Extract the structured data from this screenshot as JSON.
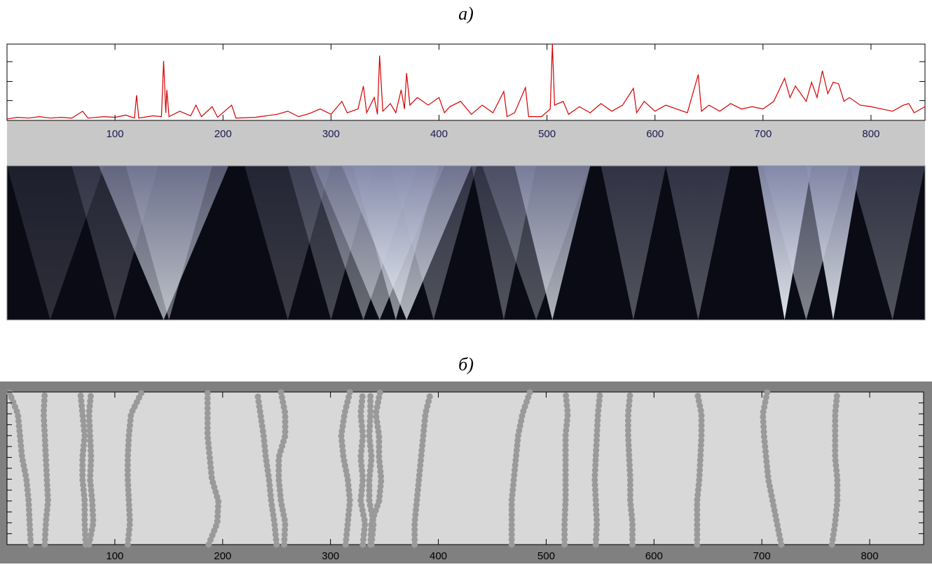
{
  "chart_data": [
    {
      "type": "line",
      "title": "а)",
      "color": "#d40000",
      "xlim": [
        0,
        850
      ],
      "ylim": [
        0,
        1
      ],
      "xticks": [
        100,
        200,
        300,
        400,
        500,
        600,
        700,
        800
      ],
      "yticks": [
        0.26,
        0.51,
        0.77
      ],
      "x": [
        0,
        10,
        20,
        30,
        40,
        50,
        60,
        70,
        75,
        90,
        100,
        110,
        118,
        120,
        122,
        135,
        143,
        145,
        147,
        148,
        150,
        160,
        170,
        175,
        180,
        190,
        195,
        208,
        212,
        230,
        250,
        260,
        270,
        280,
        290,
        300,
        310,
        315,
        325,
        330,
        333,
        340,
        343,
        345,
        348,
        355,
        360,
        365,
        368,
        370,
        373,
        380,
        390,
        400,
        405,
        410,
        420,
        430,
        440,
        450,
        460,
        463,
        470,
        480,
        483,
        495,
        503,
        505,
        507,
        515,
        520,
        530,
        540,
        550,
        560,
        570,
        580,
        583,
        590,
        600,
        610,
        620,
        630,
        640,
        643,
        650,
        660,
        670,
        680,
        690,
        700,
        710,
        720,
        725,
        730,
        740,
        745,
        750,
        755,
        760,
        765,
        770,
        775,
        780,
        790,
        800,
        810,
        820,
        830,
        835,
        840,
        850
      ],
      "values": [
        0.02,
        0.04,
        0.03,
        0.05,
        0.03,
        0.04,
        0.03,
        0.12,
        0.03,
        0.05,
        0.04,
        0.07,
        0.03,
        0.33,
        0.03,
        0.06,
        0.05,
        0.78,
        0.1,
        0.4,
        0.05,
        0.12,
        0.06,
        0.2,
        0.05,
        0.18,
        0.04,
        0.2,
        0.03,
        0.04,
        0.08,
        0.12,
        0.05,
        0.09,
        0.15,
        0.08,
        0.25,
        0.1,
        0.15,
        0.45,
        0.1,
        0.3,
        0.08,
        0.85,
        0.12,
        0.22,
        0.1,
        0.4,
        0.15,
        0.62,
        0.2,
        0.3,
        0.2,
        0.3,
        0.1,
        0.18,
        0.25,
        0.08,
        0.2,
        0.1,
        0.38,
        0.05,
        0.1,
        0.43,
        0.05,
        0.05,
        0.15,
        1.0,
        0.2,
        0.25,
        0.08,
        0.18,
        0.1,
        0.22,
        0.12,
        0.2,
        0.42,
        0.1,
        0.25,
        0.12,
        0.2,
        0.15,
        0.1,
        0.6,
        0.12,
        0.2,
        0.12,
        0.22,
        0.15,
        0.18,
        0.15,
        0.25,
        0.55,
        0.3,
        0.45,
        0.25,
        0.5,
        0.3,
        0.65,
        0.35,
        0.5,
        0.48,
        0.25,
        0.3,
        0.2,
        0.18,
        0.15,
        0.12,
        0.2,
        0.22,
        0.1,
        0.18
      ]
    },
    {
      "type": "scalogram",
      "xlim": [
        0,
        850
      ],
      "cones": [
        {
          "x": 40,
          "spread": 50,
          "intensity": 0.15
        },
        {
          "x": 100,
          "spread": 40,
          "intensity": 0.2
        },
        {
          "x": 145,
          "spread": 60,
          "intensity": 0.6
        },
        {
          "x": 150,
          "spread": 40,
          "intensity": 0.4
        },
        {
          "x": 260,
          "spread": 40,
          "intensity": 0.2
        },
        {
          "x": 300,
          "spread": 40,
          "intensity": 0.25
        },
        {
          "x": 330,
          "spread": 50,
          "intensity": 0.4
        },
        {
          "x": 345,
          "spread": 60,
          "intensity": 0.5
        },
        {
          "x": 360,
          "spread": 40,
          "intensity": 0.55
        },
        {
          "x": 370,
          "spread": 60,
          "intensity": 0.7
        },
        {
          "x": 395,
          "spread": 40,
          "intensity": 0.3
        },
        {
          "x": 460,
          "spread": 30,
          "intensity": 0.3
        },
        {
          "x": 490,
          "spread": 50,
          "intensity": 0.3
        },
        {
          "x": 505,
          "spread": 35,
          "intensity": 0.7
        },
        {
          "x": 580,
          "spread": 30,
          "intensity": 0.3
        },
        {
          "x": 640,
          "spread": 30,
          "intensity": 0.3
        },
        {
          "x": 720,
          "spread": 25,
          "intensity": 0.9
        },
        {
          "x": 740,
          "spread": 40,
          "intensity": 0.5
        },
        {
          "x": 765,
          "spread": 25,
          "intensity": 0.85
        },
        {
          "x": 820,
          "spread": 40,
          "intensity": 0.3
        }
      ]
    },
    {
      "type": "maxima-lines",
      "title": "б)",
      "color": "#9a9a9a",
      "xlim": [
        0,
        850
      ],
      "ylim": [
        0,
        14
      ],
      "xticks": [
        100,
        200,
        300,
        400,
        500,
        600,
        700,
        800
      ],
      "yticks": [
        0,
        1,
        2,
        3,
        4,
        5,
        6,
        7,
        8,
        9,
        10,
        11,
        12,
        13,
        14
      ],
      "scale_levels": [
        0,
        2,
        4,
        6,
        8,
        10,
        12,
        14
      ],
      "lines": [
        {
          "x": [
            22,
            21,
            20,
            18,
            14,
            12,
            10,
            2
          ]
        },
        {
          "x": [
            35,
            36,
            38,
            37,
            36,
            35,
            34,
            35
          ]
        },
        {
          "x": [
            73,
            72,
            72,
            70,
            70,
            72,
            70,
            68
          ]
        },
        {
          "x": [
            76,
            80,
            79,
            77,
            78,
            77,
            76,
            78
          ]
        },
        {
          "x": [
            112,
            114,
            113,
            112,
            112,
            113,
            115,
            125
          ]
        },
        {
          "x": [
            187,
            195,
            196,
            190,
            188,
            186,
            186,
            186
          ]
        },
        {
          "x": [
            250,
            248,
            245,
            243,
            240,
            238,
            235,
            232
          ]
        },
        {
          "x": [
            257,
            258,
            254,
            252,
            252,
            258,
            258,
            254
          ]
        },
        {
          "x": [
            314,
            316,
            318,
            316,
            312,
            310,
            313,
            318
          ]
        },
        {
          "x": [
            330,
            332,
            328,
            330,
            328,
            330,
            328,
            330
          ]
        },
        {
          "x": [
            338,
            340,
            336,
            336,
            338,
            336,
            337,
            337
          ]
        },
        {
          "x": [
            337,
            338,
            345,
            347,
            345,
            345,
            342,
            346
          ]
        },
        {
          "x": [
            378,
            378,
            380,
            382,
            384,
            386,
            388,
            393
          ]
        },
        {
          "x": [
            468,
            468,
            468,
            470,
            472,
            474,
            478,
            485
          ]
        },
        {
          "x": [
            517,
            517,
            518,
            518,
            518,
            518,
            520,
            518
          ]
        },
        {
          "x": [
            546,
            547,
            546,
            545,
            546,
            547,
            548,
            550
          ]
        },
        {
          "x": [
            580,
            580,
            578,
            578,
            577,
            576,
            576,
            578
          ]
        },
        {
          "x": [
            640,
            640,
            640,
            642,
            643,
            644,
            644,
            640
          ]
        },
        {
          "x": [
            718,
            714,
            710,
            706,
            704,
            702,
            701,
            705
          ]
        },
        {
          "x": [
            765,
            768,
            770,
            770,
            768,
            768,
            768,
            770
          ]
        }
      ]
    }
  ]
}
